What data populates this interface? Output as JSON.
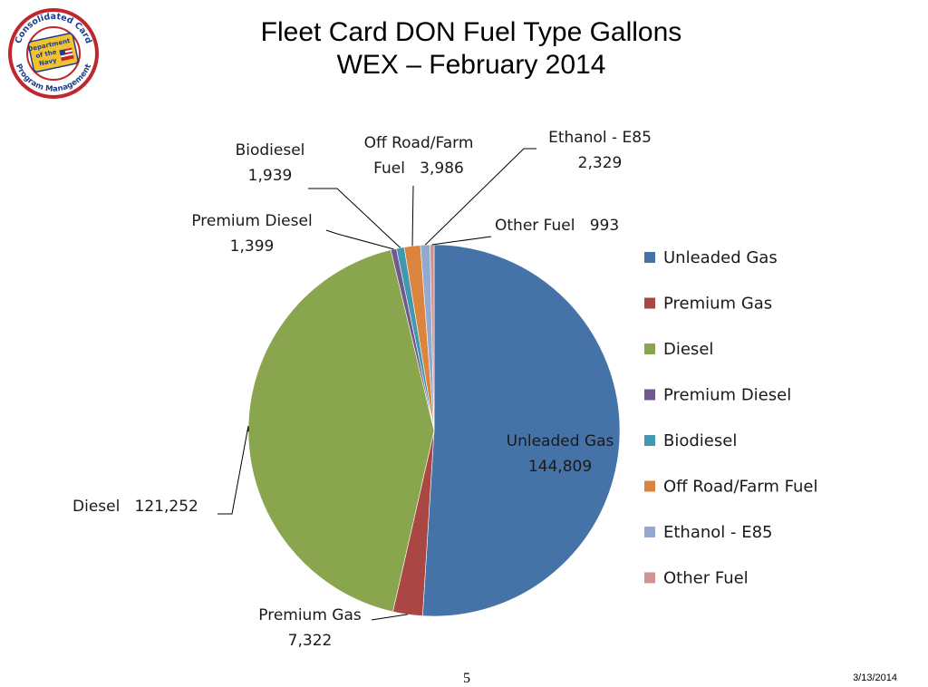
{
  "logo": {
    "ring_text_top": "Consolidated Card",
    "ring_text_bottom": "Program Management",
    "badge_text": [
      "Department",
      "of the",
      "Navy"
    ],
    "ring_color": "#c0272d",
    "badge_color": "#f2c230"
  },
  "title": {
    "line1": "Fleet Card DON Fuel Type Gallons",
    "line2": "WEX – February 2014"
  },
  "footer": {
    "page_number": "5",
    "date": "3/13/2014"
  },
  "chart_data": {
    "type": "pie",
    "start_angle_deg": 0,
    "direction": "clockwise",
    "legend_position": "right",
    "slices": [
      {
        "name": "Unleaded Gas",
        "value": 144809,
        "value_label": "144,809",
        "color": "#4572a7",
        "label_lines": [
          "Unleaded Gas",
          "144,809"
        ],
        "label_placement": "inside"
      },
      {
        "name": "Premium Gas",
        "value": 7322,
        "value_label": "7,322",
        "color": "#aa4643",
        "label_lines": [
          "Premium Gas",
          "7,322"
        ],
        "label_placement": "outside"
      },
      {
        "name": "Diesel",
        "value": 121252,
        "value_label": "121,252",
        "color": "#89a54e",
        "label_lines": [
          "Diesel   121,252"
        ],
        "label_placement": "outside"
      },
      {
        "name": "Premium Diesel",
        "value": 1399,
        "value_label": "1,399",
        "color": "#71588f",
        "label_lines": [
          "Premium Diesel",
          "1,399"
        ],
        "label_placement": "outside"
      },
      {
        "name": "Biodiesel",
        "value": 1939,
        "value_label": "1,939",
        "color": "#4198af",
        "label_lines": [
          "Biodiesel",
          "1,939"
        ],
        "label_placement": "outside"
      },
      {
        "name": "Off Road/Farm Fuel",
        "value": 3986,
        "value_label": "3,986",
        "color": "#db843d",
        "label_lines": [
          "Off Road/Farm",
          "Fuel   3,986"
        ],
        "label_placement": "outside"
      },
      {
        "name": "Ethanol - E85",
        "value": 2329,
        "value_label": "2,329",
        "color": "#93a9cf",
        "label_lines": [
          "Ethanol - E85",
          "2,329"
        ],
        "label_placement": "outside"
      },
      {
        "name": "Other Fuel",
        "value": 993,
        "value_label": "993",
        "color": "#d19392",
        "label_lines": [
          "Other Fuel   993"
        ],
        "label_placement": "outside"
      }
    ]
  }
}
